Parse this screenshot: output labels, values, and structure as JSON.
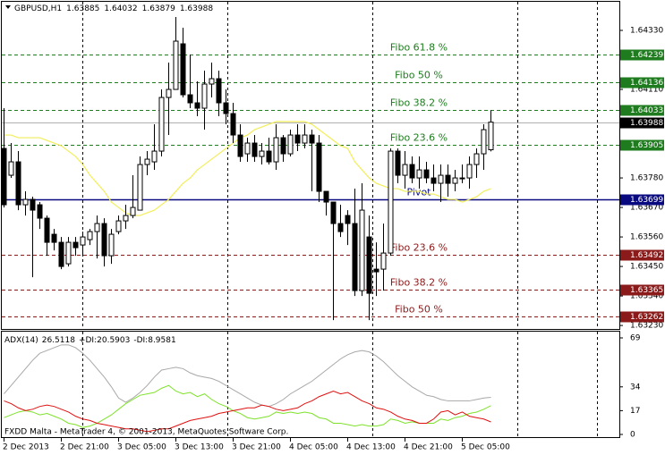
{
  "chart_data": [
    {
      "type": "candlestick",
      "title": "GBPUSD,H1",
      "categories": [
        "2 Dec 2013",
        null,
        null,
        null,
        null,
        null,
        null,
        null,
        "2 Dec 21:00",
        null,
        null,
        null,
        null,
        null,
        null,
        null,
        "3 Dec 05:00",
        null,
        null,
        null,
        null,
        null,
        null,
        null,
        "3 Dec 13:00",
        null,
        null,
        null,
        null,
        null,
        null,
        null,
        "3 Dec 21:00",
        null,
        null,
        null,
        null,
        null,
        null,
        null,
        "4 Dec 05:00",
        null,
        null,
        null,
        null,
        null,
        null,
        null,
        "4 Dec 13:00",
        null,
        null,
        null,
        null,
        null,
        null,
        null,
        "4 Dec 21:00",
        null,
        null,
        null,
        null,
        null,
        null,
        null,
        "5 Dec 05:00",
        null,
        null,
        null,
        null
      ],
      "open": [
        1.6389,
        1.6379,
        1.6384,
        1.6368,
        1.637,
        1.6368,
        1.6363,
        1.6357,
        1.6354,
        1.6346,
        1.6354,
        1.6353,
        1.6355,
        1.6358,
        1.6361,
        1.6349,
        1.6358,
        1.6362,
        1.6364,
        1.6366,
        1.6383,
        1.6384,
        1.6388,
        1.6408,
        1.6411,
        1.6428,
        1.6409,
        1.6406,
        1.6404,
        1.6413,
        1.6415,
        1.6406,
        1.6402,
        1.6394,
        1.6387,
        1.6391,
        1.6386,
        1.6388,
        1.6384,
        1.6393,
        1.6387,
        1.6394,
        1.6391,
        1.6394,
        1.6391,
        1.6373,
        1.6369,
        1.6361,
        1.6364,
        1.6361,
        1.6336,
        1.6356,
        1.6344,
        1.6344,
        1.635,
        1.6388,
        1.6379,
        1.6383,
        1.6378,
        1.6381,
        1.6378,
        1.6376,
        1.6379,
        1.6376,
        1.6378,
        1.6378,
        1.6383,
        1.6387,
        1.63885
      ],
      "high": [
        1.6404,
        1.6391,
        1.6388,
        1.6373,
        1.6371,
        1.6369,
        1.6364,
        1.6359,
        1.6356,
        1.6356,
        1.6356,
        1.6358,
        1.6359,
        1.6364,
        1.6363,
        1.6359,
        1.6364,
        1.6368,
        1.6379,
        1.6386,
        1.6388,
        1.6398,
        1.6411,
        1.6421,
        1.6438,
        1.6434,
        1.6424,
        1.6414,
        1.6418,
        1.6421,
        1.6418,
        1.6411,
        1.6406,
        1.6398,
        1.6393,
        1.6394,
        1.6391,
        1.6393,
        1.6398,
        1.6394,
        1.6396,
        1.6398,
        1.6398,
        1.6396,
        1.6394,
        1.6373,
        1.6369,
        1.6368,
        1.6366,
        1.6374,
        1.6376,
        1.6364,
        1.6354,
        1.6361,
        1.6389,
        1.6389,
        1.6388,
        1.6386,
        1.6386,
        1.6384,
        1.6383,
        1.6383,
        1.6383,
        1.6381,
        1.6383,
        1.6386,
        1.6389,
        1.6398,
        1.64032
      ],
      "low": [
        1.6367,
        1.6378,
        1.6366,
        1.6364,
        1.6341,
        1.6359,
        1.6349,
        1.6351,
        1.6344,
        1.6345,
        1.6349,
        1.6349,
        1.6353,
        1.6348,
        1.6345,
        1.6346,
        1.6357,
        1.6359,
        1.6363,
        1.6366,
        1.6379,
        1.6381,
        1.6386,
        1.6394,
        1.6411,
        1.6408,
        1.6404,
        1.6401,
        1.6396,
        1.6408,
        1.6401,
        1.6398,
        1.6391,
        1.6384,
        1.6384,
        1.6384,
        1.6383,
        1.6383,
        1.6381,
        1.6384,
        1.6386,
        1.6388,
        1.6389,
        1.6373,
        1.6369,
        1.6364,
        1.6325,
        1.6356,
        1.6353,
        1.6334,
        1.6334,
        1.6325,
        1.6334,
        1.6336,
        1.6349,
        1.6376,
        1.6374,
        1.6376,
        1.6374,
        1.6376,
        1.6373,
        1.6369,
        1.6371,
        1.6373,
        1.6376,
        1.6374,
        1.6378,
        1.6381,
        1.63879
      ],
      "close": [
        1.6368,
        1.6384,
        1.6368,
        1.637,
        1.6366,
        1.6363,
        1.6354,
        1.6354,
        1.6345,
        1.6354,
        1.6352,
        1.6356,
        1.6358,
        1.6361,
        1.6349,
        1.6357,
        1.6362,
        1.6364,
        1.6367,
        1.6383,
        1.6385,
        1.6388,
        1.6408,
        1.6411,
        1.6429,
        1.6409,
        1.6406,
        1.6404,
        1.6413,
        1.6415,
        1.6406,
        1.6402,
        1.6394,
        1.6386,
        1.6391,
        1.6386,
        1.6388,
        1.6384,
        1.6393,
        1.6387,
        1.6394,
        1.6391,
        1.6394,
        1.6391,
        1.6373,
        1.6369,
        1.6361,
        1.6358,
        1.6361,
        1.6336,
        1.6366,
        1.6335,
        1.6343,
        1.635,
        1.6388,
        1.6379,
        1.6383,
        1.6378,
        1.6381,
        1.6378,
        1.6376,
        1.6379,
        1.6376,
        1.6378,
        1.6378,
        1.6383,
        1.6387,
        1.6396,
        1.63988
      ],
      "up_color": "#ffffff",
      "down_color": "#000000",
      "lines": [
        {
          "color": "#f2ee5a",
          "values": [
            1.6394,
            1.6394,
            1.6393,
            1.6393,
            1.6393,
            1.6393,
            1.6392,
            1.6391,
            1.639,
            1.6388,
            1.6386,
            1.6383,
            1.6379,
            1.6376,
            1.6373,
            1.6369,
            1.6367,
            1.6365,
            1.6364,
            1.6364,
            1.6365,
            1.6366,
            1.6368,
            1.637,
            1.6373,
            1.6376,
            1.6378,
            1.6381,
            1.6383,
            1.6385,
            1.6387,
            1.6389,
            1.6391,
            1.6393,
            1.6394,
            1.6396,
            1.6397,
            1.6398,
            1.6399,
            1.6399,
            1.6399,
            1.6399,
            1.6399,
            1.6398,
            1.6396,
            1.6394,
            1.6392,
            1.639,
            1.6389,
            1.6384,
            1.6381,
            1.6378,
            1.6376,
            1.6375,
            1.6374,
            1.6374,
            1.6373,
            1.6373,
            1.6373,
            1.6372,
            1.6372,
            1.6371,
            1.637,
            1.637,
            1.6369,
            1.637,
            1.6371,
            1.6373,
            1.6374
          ]
        }
      ],
      "levels": [
        {
          "label": "Fibo 61.8 %",
          "value": 1.64239,
          "color": "#1e7b1e",
          "style": "dash"
        },
        {
          "label": "Fibo 50 %",
          "value": 1.64136,
          "color": "#1e7b1e",
          "style": "dash"
        },
        {
          "label": "Fibo 38.2 %",
          "value": 1.64033,
          "color": "#1e7b1e",
          "style": "dash"
        },
        {
          "label": "Fibo 23.6 %",
          "value": 1.63905,
          "color": "#1e7b1e",
          "style": "dash"
        },
        {
          "label": "Pivot",
          "value": 1.63699,
          "color": "#0a0a80",
          "style": "solid"
        },
        {
          "label": "Fibo 23.6 %",
          "value": 1.63492,
          "color": "#8b1a1a",
          "style": "dash"
        },
        {
          "label": "Fibo 38.2 %",
          "value": 1.63365,
          "color": "#8b1a1a",
          "style": "dash"
        },
        {
          "label": "Fibo 50 %",
          "value": 1.63262,
          "color": "#8b1a1a",
          "style": "dash"
        }
      ],
      "ylim": [
        1.63217,
        1.6443
      ],
      "yticks": [
        {
          "value": 1.6433,
          "label": "1.64330"
        },
        {
          "value": 1.6411,
          "label": "1.64110"
        },
        {
          "value": 1.6378,
          "label": "1.63780"
        },
        {
          "value": 1.6367,
          "label": "1.63670"
        },
        {
          "value": 1.6356,
          "label": "1.63560"
        },
        {
          "value": 1.6345,
          "label": "1.63450"
        },
        {
          "value": 1.6334,
          "label": "1.63340"
        },
        {
          "value": 1.6323,
          "label": "1.63230"
        }
      ]
    },
    {
      "type": "line",
      "footer": "FXDD Malta - MetaTrader 4, © 2001-2013, MetaQuotes Software Corp.",
      "series": [
        {
          "name": "ADX(14)",
          "color": "#a8a8a8",
          "values": [
            29,
            35,
            41,
            47,
            53,
            58,
            60,
            62,
            64,
            64,
            62,
            58,
            53,
            47,
            41,
            34,
            26,
            23,
            26,
            30,
            35,
            41,
            46,
            47,
            48,
            47,
            44,
            42,
            41,
            40,
            38,
            35,
            32,
            29,
            26,
            23,
            21,
            20,
            22,
            25,
            29,
            32,
            35,
            38,
            42,
            46,
            50,
            54,
            57,
            59,
            60,
            59,
            56,
            52,
            47,
            42,
            38,
            34,
            31,
            28,
            27,
            25,
            24,
            24,
            24,
            24,
            25,
            26,
            26.5118
          ]
        },
        {
          "name": "+DI:",
          "color": "#7ee22a",
          "values": [
            12,
            14,
            16,
            17,
            16,
            14,
            15,
            13,
            11,
            8,
            7,
            5,
            6,
            8,
            11,
            14,
            18,
            22,
            25,
            28,
            29,
            30,
            33,
            35,
            31,
            29,
            30,
            27,
            29,
            25,
            22,
            20,
            17,
            15,
            12,
            11,
            12,
            13,
            16,
            15,
            16,
            15,
            16,
            15,
            12,
            11,
            8,
            8,
            7,
            6,
            7,
            6,
            6,
            7,
            11,
            10,
            8,
            9,
            8,
            8,
            8,
            11,
            10,
            12,
            13,
            15,
            16,
            18,
            20.5903
          ]
        },
        {
          "name": "-DI:",
          "color": "#e01010",
          "values": [
            24,
            22,
            19,
            17,
            18,
            20,
            21,
            20,
            18,
            16,
            13,
            11,
            10,
            8,
            7,
            6,
            5,
            4,
            4,
            3,
            2,
            3,
            4,
            4,
            6,
            8,
            10,
            11,
            12,
            13,
            15,
            16,
            17,
            18,
            19,
            19,
            21,
            20,
            18,
            17,
            18,
            19,
            22,
            24,
            27,
            29,
            31,
            29,
            30,
            27,
            24,
            22,
            19,
            18,
            16,
            13,
            11,
            10,
            8,
            8,
            11,
            16,
            17,
            14,
            16,
            13,
            12,
            11,
            8.9581
          ]
        }
      ],
      "ylim": [
        0,
        69
      ],
      "yticks": [
        0,
        17,
        34,
        69
      ]
    }
  ]
}
